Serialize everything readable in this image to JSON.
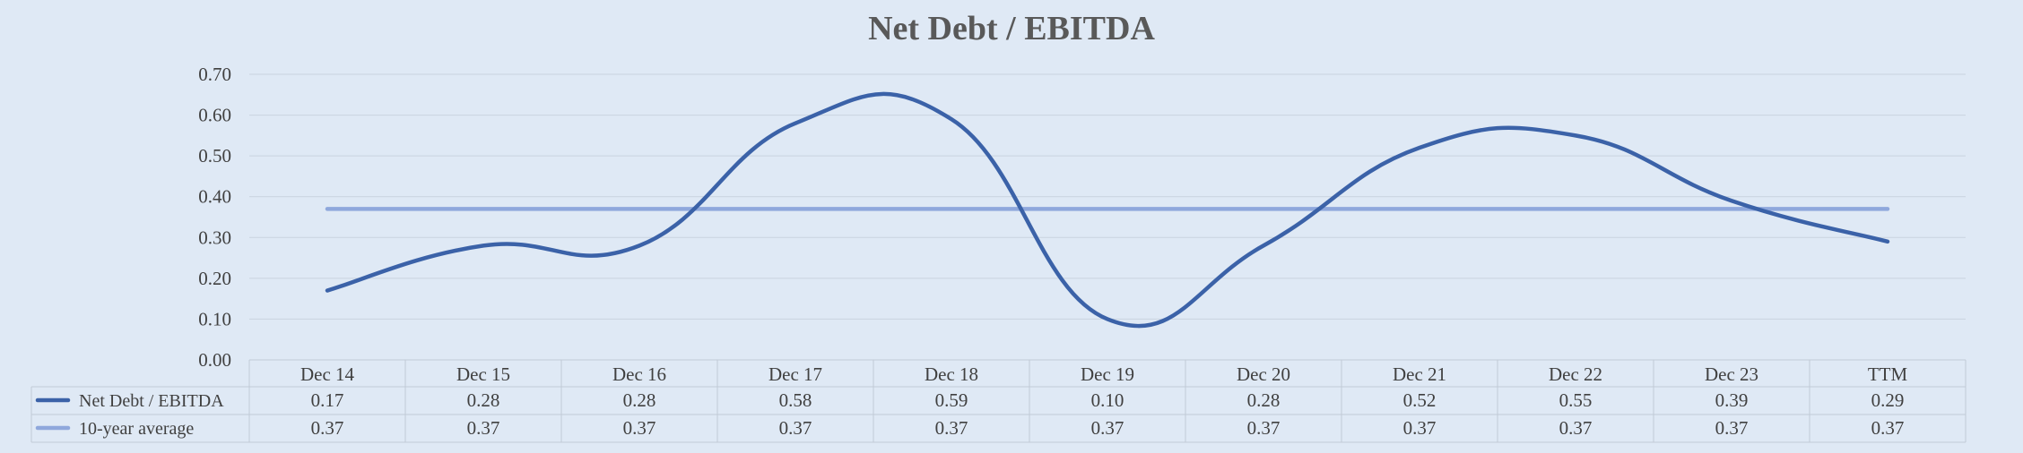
{
  "chart_data": {
    "type": "line",
    "title": "Net Debt / EBITDA",
    "categories": [
      "Dec 14",
      "Dec 15",
      "Dec 16",
      "Dec 17",
      "Dec 18",
      "Dec 19",
      "Dec 20",
      "Dec 21",
      "Dec 22",
      "Dec 23",
      "TTM"
    ],
    "series": [
      {
        "name": "Net Debt / EBITDA",
        "values": [
          0.17,
          0.28,
          0.28,
          0.58,
          0.59,
          0.1,
          0.28,
          0.52,
          0.55,
          0.39,
          0.29
        ],
        "labels": [
          "0.17",
          "0.28",
          "0.28",
          "0.58",
          "0.59",
          "0.10",
          "0.28",
          "0.52",
          "0.55",
          "0.39",
          "0.29"
        ],
        "color": "#3b62a8"
      },
      {
        "name": "10-year average",
        "values": [
          0.37,
          0.37,
          0.37,
          0.37,
          0.37,
          0.37,
          0.37,
          0.37,
          0.37,
          0.37,
          0.37
        ],
        "labels": [
          "0.37",
          "0.37",
          "0.37",
          "0.37",
          "0.37",
          "0.37",
          "0.37",
          "0.37",
          "0.37",
          "0.37",
          "0.37"
        ],
        "color": "#8fa8dc"
      }
    ],
    "y_ticks": [
      "0.00",
      "0.10",
      "0.20",
      "0.30",
      "0.40",
      "0.50",
      "0.60",
      "0.70"
    ],
    "ylim": [
      0,
      0.7
    ],
    "grid": true,
    "legend": "data-table"
  }
}
